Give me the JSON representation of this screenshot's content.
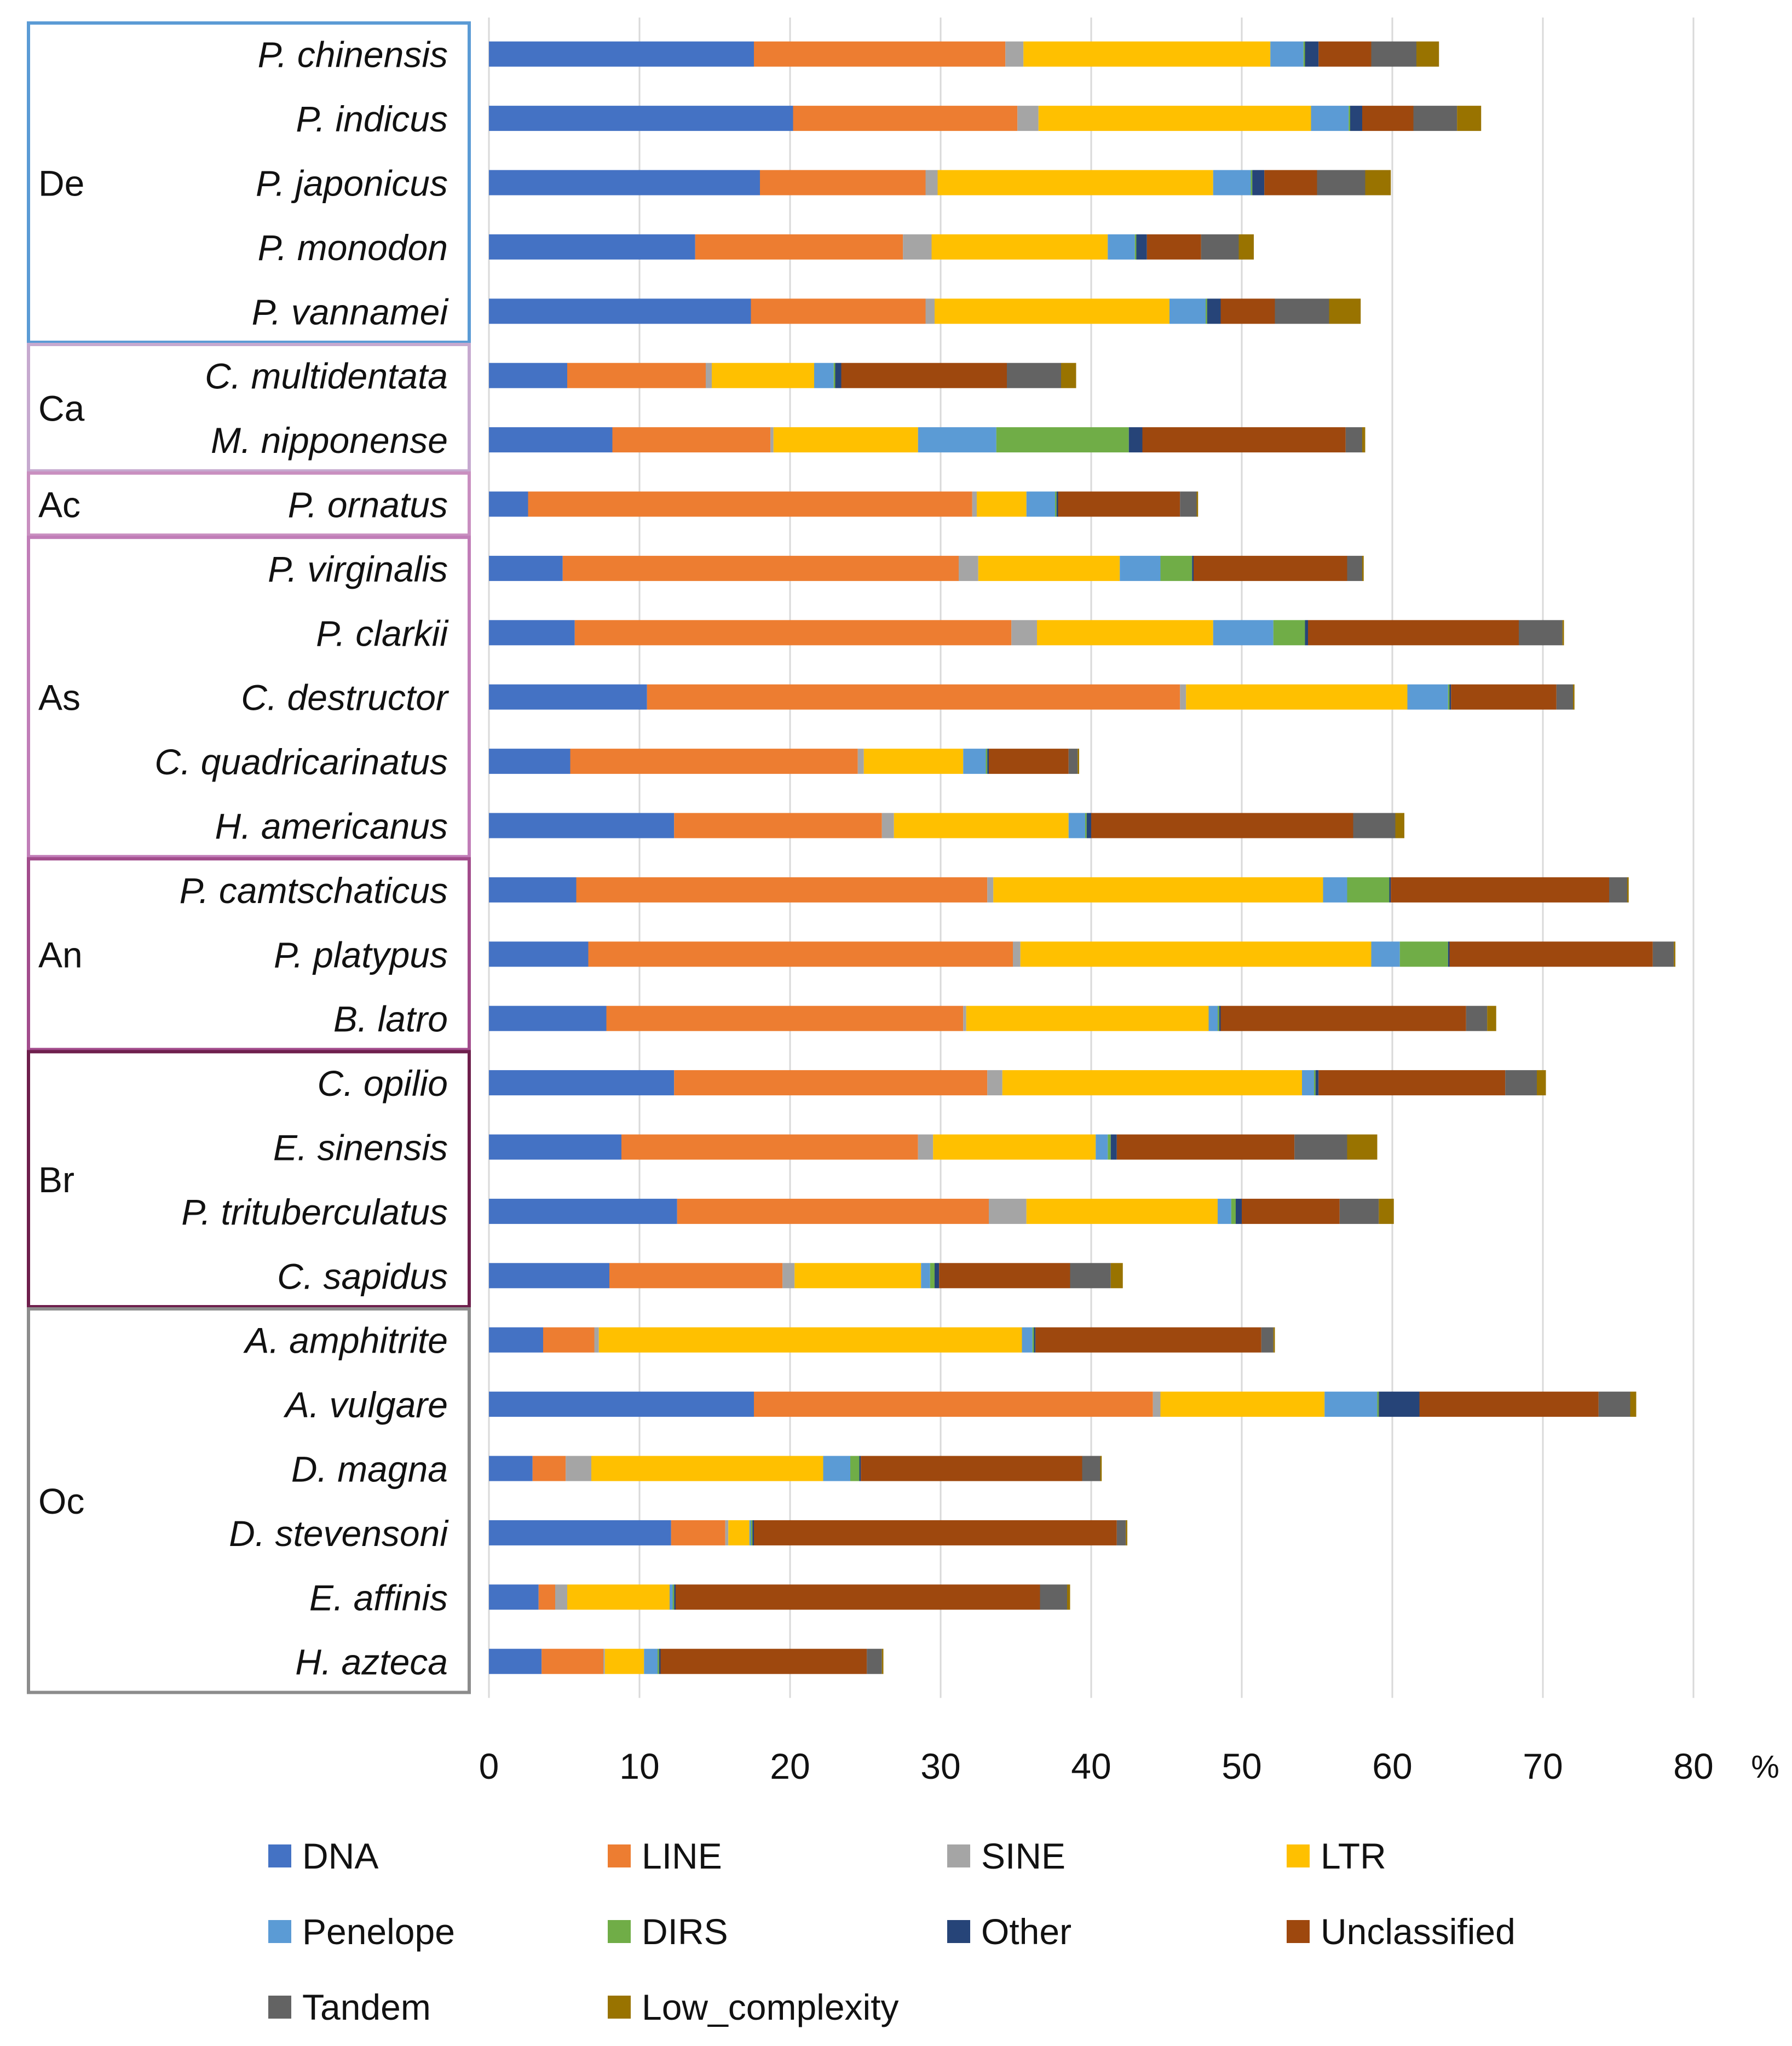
{
  "chart_data": {
    "type": "bar",
    "orientation": "horizontal",
    "stacked": true,
    "title": "",
    "xlabel": "",
    "ylabel": "",
    "unit_label": "%",
    "xlim": [
      0,
      80
    ],
    "x_ticks": [
      "0",
      "10",
      "20",
      "30",
      "40",
      "50",
      "60",
      "70",
      "80"
    ],
    "grid": true,
    "legend_position": "bottom",
    "legend": [
      "DNA",
      "LINE",
      "SINE",
      "LTR",
      "Penelope",
      "DIRS",
      "Other",
      "Unclassified",
      "Tandem",
      "Low_complexity"
    ],
    "colors": {
      "DNA": "#4472C4",
      "LINE": "#ED7D31",
      "SINE": "#A5A5A5",
      "LTR": "#FFC000",
      "Penelope": "#5B9BD5",
      "DIRS": "#70AD47",
      "Other": "#264478",
      "Unclassified": "#9E480E",
      "Tandem": "#636363",
      "Low_complexity": "#997300"
    },
    "groups": [
      {
        "label": "De",
        "color": "#5B9BD5",
        "species": [
          "P. chinensis",
          "P. indicus",
          "P. japonicus",
          "P. monodon",
          "P. vannamei"
        ]
      },
      {
        "label": "Ca",
        "color": "#C6A9CF",
        "species": [
          "C. multidentata",
          "M. nipponense"
        ]
      },
      {
        "label": "Ac",
        "color": "#C98FC0",
        "species": [
          "P. ornatus"
        ]
      },
      {
        "label": "As",
        "color": "#C17DB8",
        "species": [
          "P. virginalis",
          "P. clarkii",
          "C. destructor",
          "C. quadricarinatus",
          "H. americanus"
        ]
      },
      {
        "label": "An",
        "color": "#A24C8C",
        "species": [
          "P. camtschaticus",
          "P. platypus",
          "B. latro"
        ]
      },
      {
        "label": "Br",
        "color": "#6E1F4C",
        "species": [
          "C. opilio",
          "E. sinensis",
          "P. trituberculatus",
          "C. sapidus"
        ]
      },
      {
        "label": "Oc",
        "color": "#8C8C8C",
        "species": [
          "A. amphitrite",
          "A. vulgare",
          "D. magna",
          "D. stevensoni",
          "E. affinis",
          "H. azteca"
        ]
      }
    ],
    "categories": [
      "P. chinensis",
      "P. indicus",
      "P. japonicus",
      "P. monodon",
      "P. vannamei",
      "C. multidentata",
      "M. nipponense",
      "P. ornatus",
      "P. virginalis",
      "P. clarkii",
      "C. destructor",
      "C. quadricarinatus",
      "H. americanus",
      "P. camtschaticus",
      "P. platypus",
      "B. latro",
      "C. opilio",
      "E. sinensis",
      "P. trituberculatus",
      "C. sapidus",
      "A. amphitrite",
      "A. vulgare",
      "D. magna",
      "D. stevensoni",
      "E. affinis",
      "H. azteca"
    ],
    "series": [
      {
        "name": "DNA",
        "values": [
          17.6,
          20.2,
          18.0,
          13.7,
          17.4,
          5.2,
          8.2,
          2.6,
          4.9,
          5.7,
          10.5,
          5.4,
          12.3,
          5.8,
          6.6,
          7.8,
          12.3,
          8.8,
          12.5,
          8.0,
          3.6,
          17.6,
          2.9,
          12.1,
          3.3,
          3.5
        ]
      },
      {
        "name": "LINE",
        "values": [
          16.7,
          14.9,
          11.0,
          13.8,
          11.6,
          9.2,
          10.5,
          29.5,
          26.3,
          29.0,
          35.4,
          19.1,
          13.8,
          27.3,
          28.2,
          23.7,
          20.8,
          19.7,
          20.7,
          11.5,
          3.4,
          26.5,
          2.2,
          3.6,
          1.1,
          4.1
        ]
      },
      {
        "name": "SINE",
        "values": [
          1.2,
          1.4,
          0.8,
          1.9,
          0.6,
          0.4,
          0.2,
          0.3,
          1.3,
          1.7,
          0.4,
          0.4,
          0.8,
          0.4,
          0.5,
          0.2,
          1.0,
          1.0,
          2.5,
          0.8,
          0.3,
          0.5,
          1.7,
          0.2,
          0.8,
          0.1
        ]
      },
      {
        "name": "LTR",
        "values": [
          16.4,
          18.1,
          18.3,
          11.7,
          15.6,
          6.8,
          9.6,
          3.3,
          9.4,
          11.7,
          14.7,
          6.6,
          11.6,
          21.9,
          23.3,
          16.1,
          19.9,
          10.8,
          12.7,
          8.4,
          28.1,
          10.9,
          15.4,
          1.4,
          6.8,
          2.6
        ]
      },
      {
        "name": "Penelope",
        "values": [
          2.2,
          2.5,
          2.5,
          1.8,
          2.4,
          1.3,
          5.2,
          1.9,
          2.7,
          4.0,
          2.7,
          1.5,
          1.1,
          1.6,
          1.9,
          0.6,
          0.8,
          0.8,
          0.9,
          0.6,
          0.7,
          3.5,
          1.8,
          0.1,
          0.2,
          0.9
        ]
      },
      {
        "name": "DIRS",
        "values": [
          0.1,
          0.1,
          0.1,
          0.1,
          0.1,
          0.1,
          8.8,
          0.1,
          2.1,
          2.1,
          0.1,
          0.1,
          0.1,
          2.8,
          3.2,
          0.1,
          0.1,
          0.2,
          0.3,
          0.3,
          0.1,
          0.1,
          0.6,
          0.1,
          0.1,
          0.1
        ]
      },
      {
        "name": "Other",
        "values": [
          0.9,
          0.8,
          0.8,
          0.7,
          0.9,
          0.4,
          0.9,
          0.1,
          0.1,
          0.2,
          0.1,
          0.1,
          0.3,
          0.1,
          0.1,
          0.1,
          0.2,
          0.4,
          0.4,
          0.3,
          0.1,
          2.7,
          0.1,
          0.1,
          0.1,
          0.1
        ]
      },
      {
        "name": "Unclassified",
        "values": [
          3.5,
          3.4,
          3.5,
          3.6,
          3.6,
          11.0,
          13.5,
          8.1,
          10.2,
          14.0,
          7.0,
          5.3,
          17.4,
          14.5,
          13.5,
          16.3,
          12.4,
          11.8,
          6.5,
          8.7,
          15.0,
          11.9,
          14.7,
          24.1,
          24.2,
          13.7
        ]
      },
      {
        "name": "Tandem",
        "values": [
          3.0,
          2.9,
          3.2,
          2.5,
          3.6,
          3.6,
          1.1,
          1.1,
          1.0,
          2.9,
          1.1,
          0.6,
          2.8,
          1.2,
          1.4,
          1.4,
          2.1,
          3.5,
          2.6,
          2.7,
          0.8,
          2.1,
          1.2,
          0.6,
          1.8,
          1.0
        ]
      },
      {
        "name": "Low_complexity",
        "values": [
          1.5,
          1.6,
          1.7,
          1.0,
          2.1,
          1.0,
          0.2,
          0.1,
          0.1,
          0.1,
          0.1,
          0.1,
          0.6,
          0.1,
          0.1,
          0.6,
          0.6,
          2.0,
          1.0,
          0.8,
          0.1,
          0.4,
          0.1,
          0.1,
          0.2,
          0.1
        ]
      }
    ]
  }
}
